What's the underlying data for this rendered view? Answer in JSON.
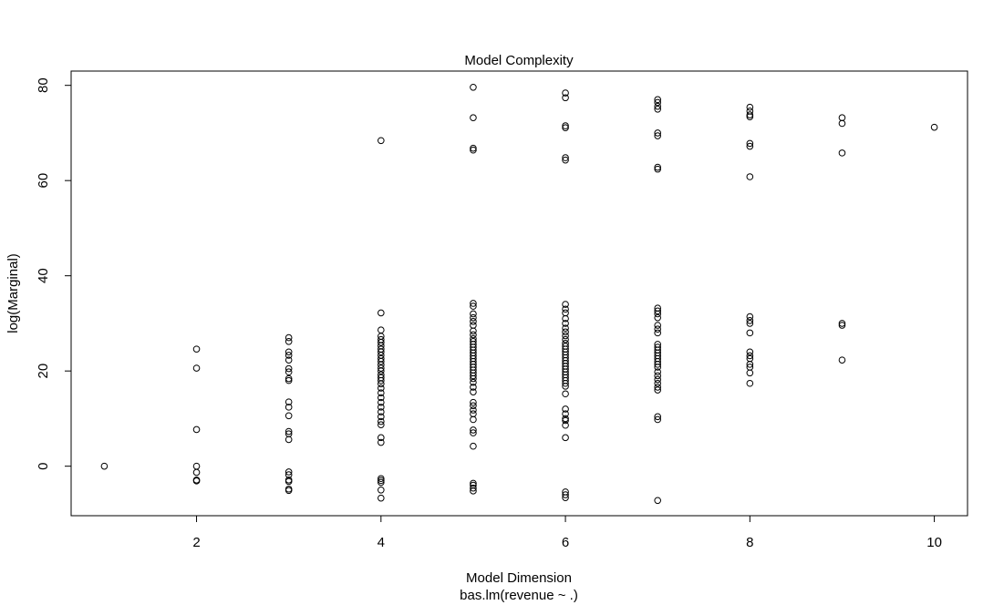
{
  "chart_data": {
    "type": "scatter",
    "title": "Model Complexity",
    "xlabel": "Model Dimension",
    "xlabel_sub": "bas.lm(revenue ~ .)",
    "ylabel": "log(Marginal)",
    "xlim": [
      0.64,
      10.36
    ],
    "ylim": [
      -10.4,
      83.0
    ],
    "x_ticks": [
      2,
      4,
      6,
      8,
      10
    ],
    "y_ticks": [
      0,
      20,
      40,
      60,
      80
    ],
    "grid": false,
    "point_style": "open-circle",
    "series": [
      {
        "points": [
          [
            1,
            0.0
          ],
          [
            2,
            24.6
          ],
          [
            2,
            20.6
          ],
          [
            2,
            7.7
          ],
          [
            2,
            0.0
          ],
          [
            2,
            -1.3
          ],
          [
            2,
            -2.9
          ],
          [
            2,
            -3.1
          ],
          [
            3,
            27.0
          ],
          [
            3,
            26.2
          ],
          [
            3,
            24.0
          ],
          [
            3,
            23.3
          ],
          [
            3,
            22.3
          ],
          [
            3,
            20.5
          ],
          [
            3,
            19.8
          ],
          [
            3,
            18.4
          ],
          [
            3,
            18.0
          ],
          [
            3,
            13.5
          ],
          [
            3,
            12.4
          ],
          [
            3,
            10.6
          ],
          [
            3,
            7.3
          ],
          [
            3,
            6.8
          ],
          [
            3,
            5.6
          ],
          [
            3,
            -1.2
          ],
          [
            3,
            -1.8
          ],
          [
            3,
            -2.9
          ],
          [
            3,
            -3.2
          ],
          [
            3,
            -4.8
          ],
          [
            3,
            -5.1
          ],
          [
            4,
            68.4
          ],
          [
            4,
            32.2
          ],
          [
            4,
            28.6
          ],
          [
            4,
            27.3
          ],
          [
            4,
            26.6
          ],
          [
            4,
            26.0
          ],
          [
            4,
            25.3
          ],
          [
            4,
            24.6
          ],
          [
            4,
            24.0
          ],
          [
            4,
            23.3
          ],
          [
            4,
            22.6
          ],
          [
            4,
            22.0
          ],
          [
            4,
            21.3
          ],
          [
            4,
            20.6
          ],
          [
            4,
            20.0
          ],
          [
            4,
            19.2
          ],
          [
            4,
            18.6
          ],
          [
            4,
            18.0
          ],
          [
            4,
            17.3
          ],
          [
            4,
            16.4
          ],
          [
            4,
            15.4
          ],
          [
            4,
            14.4
          ],
          [
            4,
            13.4
          ],
          [
            4,
            12.4
          ],
          [
            4,
            11.4
          ],
          [
            4,
            10.4
          ],
          [
            4,
            9.4
          ],
          [
            4,
            8.7
          ],
          [
            4,
            6.0
          ],
          [
            4,
            5.0
          ],
          [
            4,
            -2.6
          ],
          [
            4,
            -3.0
          ],
          [
            4,
            -3.4
          ],
          [
            4,
            -5.0
          ],
          [
            4,
            -6.7
          ],
          [
            5,
            79.6
          ],
          [
            5,
            73.2
          ],
          [
            5,
            66.8
          ],
          [
            5,
            66.4
          ],
          [
            5,
            34.2
          ],
          [
            5,
            33.6
          ],
          [
            5,
            32.0
          ],
          [
            5,
            31.2
          ],
          [
            5,
            30.4
          ],
          [
            5,
            29.6
          ],
          [
            5,
            28.4
          ],
          [
            5,
            27.6
          ],
          [
            5,
            26.8
          ],
          [
            5,
            26.2
          ],
          [
            5,
            25.6
          ],
          [
            5,
            25.0
          ],
          [
            5,
            24.4
          ],
          [
            5,
            23.8
          ],
          [
            5,
            23.2
          ],
          [
            5,
            22.6
          ],
          [
            5,
            22.0
          ],
          [
            5,
            21.4
          ],
          [
            5,
            20.8
          ],
          [
            5,
            20.2
          ],
          [
            5,
            19.6
          ],
          [
            5,
            19.0
          ],
          [
            5,
            18.4
          ],
          [
            5,
            17.6
          ],
          [
            5,
            16.6
          ],
          [
            5,
            15.6
          ],
          [
            5,
            13.4
          ],
          [
            5,
            12.7
          ],
          [
            5,
            11.8
          ],
          [
            5,
            11.0
          ],
          [
            5,
            9.8
          ],
          [
            5,
            7.6
          ],
          [
            5,
            7.0
          ],
          [
            5,
            4.2
          ],
          [
            5,
            -3.6
          ],
          [
            5,
            -4.0
          ],
          [
            5,
            -4.6
          ],
          [
            5,
            -5.2
          ],
          [
            6,
            78.4
          ],
          [
            6,
            77.4
          ],
          [
            6,
            71.5
          ],
          [
            6,
            71.1
          ],
          [
            6,
            64.8
          ],
          [
            6,
            64.3
          ],
          [
            6,
            34.0
          ],
          [
            6,
            33.0
          ],
          [
            6,
            32.2
          ],
          [
            6,
            31.0
          ],
          [
            6,
            30.0
          ],
          [
            6,
            29.0
          ],
          [
            6,
            28.2
          ],
          [
            6,
            27.4
          ],
          [
            6,
            26.6
          ],
          [
            6,
            25.8
          ],
          [
            6,
            25.2
          ],
          [
            6,
            24.6
          ],
          [
            6,
            24.0
          ],
          [
            6,
            23.4
          ],
          [
            6,
            22.8
          ],
          [
            6,
            22.2
          ],
          [
            6,
            21.6
          ],
          [
            6,
            21.0
          ],
          [
            6,
            20.4
          ],
          [
            6,
            19.8
          ],
          [
            6,
            19.2
          ],
          [
            6,
            18.6
          ],
          [
            6,
            18.0
          ],
          [
            6,
            17.4
          ],
          [
            6,
            16.8
          ],
          [
            6,
            15.2
          ],
          [
            6,
            12.0
          ],
          [
            6,
            11.0
          ],
          [
            6,
            10.0
          ],
          [
            6,
            9.6
          ],
          [
            6,
            8.6
          ],
          [
            6,
            6.0
          ],
          [
            6,
            -5.4
          ],
          [
            6,
            -6.0
          ],
          [
            6,
            -6.6
          ],
          [
            7,
            77.0
          ],
          [
            7,
            76.4
          ],
          [
            7,
            75.6
          ],
          [
            7,
            75.0
          ],
          [
            7,
            70.0
          ],
          [
            7,
            69.4
          ],
          [
            7,
            62.8
          ],
          [
            7,
            62.4
          ],
          [
            7,
            33.2
          ],
          [
            7,
            32.6
          ],
          [
            7,
            32.0
          ],
          [
            7,
            31.2
          ],
          [
            7,
            29.6
          ],
          [
            7,
            28.8
          ],
          [
            7,
            28.0
          ],
          [
            7,
            25.6
          ],
          [
            7,
            25.0
          ],
          [
            7,
            24.4
          ],
          [
            7,
            23.8
          ],
          [
            7,
            23.2
          ],
          [
            7,
            22.6
          ],
          [
            7,
            22.0
          ],
          [
            7,
            21.4
          ],
          [
            7,
            20.8
          ],
          [
            7,
            19.8
          ],
          [
            7,
            19.0
          ],
          [
            7,
            18.2
          ],
          [
            7,
            17.4
          ],
          [
            7,
            16.6
          ],
          [
            7,
            16.0
          ],
          [
            7,
            10.4
          ],
          [
            7,
            9.8
          ],
          [
            7,
            -7.2
          ],
          [
            8,
            75.4
          ],
          [
            8,
            74.6
          ],
          [
            8,
            73.8
          ],
          [
            8,
            73.4
          ],
          [
            8,
            67.8
          ],
          [
            8,
            67.2
          ],
          [
            8,
            60.8
          ],
          [
            8,
            31.4
          ],
          [
            8,
            30.6
          ],
          [
            8,
            30.0
          ],
          [
            8,
            28.0
          ],
          [
            8,
            24.0
          ],
          [
            8,
            23.2
          ],
          [
            8,
            22.6
          ],
          [
            8,
            21.4
          ],
          [
            8,
            20.8
          ],
          [
            8,
            19.6
          ],
          [
            8,
            17.4
          ],
          [
            9,
            73.2
          ],
          [
            9,
            72.0
          ],
          [
            9,
            65.8
          ],
          [
            9,
            30.0
          ],
          [
            9,
            29.6
          ],
          [
            9,
            22.3
          ],
          [
            10,
            71.2
          ]
        ]
      }
    ]
  }
}
